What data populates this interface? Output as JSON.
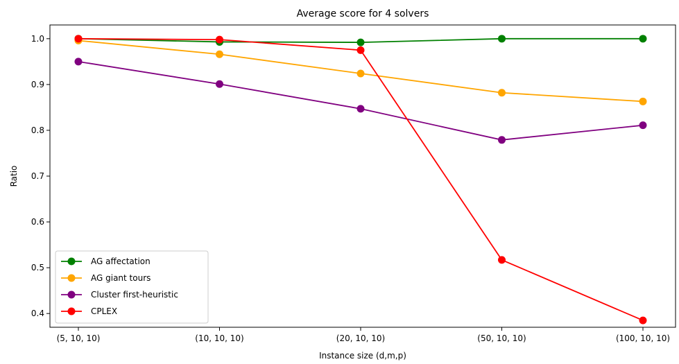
{
  "chart_data": {
    "type": "line",
    "title": "Average score for 4 solvers",
    "xlabel": "Instance size (d,m,p)",
    "ylabel": "Ratio",
    "categories": [
      "(5, 10, 10)",
      "(10, 10, 10)",
      "(20, 10, 10)",
      "(50, 10, 10)",
      "(100, 10, 10)"
    ],
    "ylim": [
      0.37,
      1.03
    ],
    "yticks": [
      "0.4",
      "0.5",
      "0.6",
      "0.7",
      "0.8",
      "0.9",
      "1.0"
    ],
    "grid": false,
    "legend_position": "lower-left",
    "series": [
      {
        "name": "AG affectation",
        "color": "#008000",
        "values": [
          1.0,
          0.993,
          0.992,
          1.0,
          1.0
        ]
      },
      {
        "name": "AG giant tours",
        "color": "#FFA500",
        "values": [
          0.996,
          0.966,
          0.924,
          0.882,
          0.863
        ]
      },
      {
        "name": "Cluster first-heuristic",
        "color": "#800080",
        "values": [
          0.95,
          0.901,
          0.847,
          0.779,
          0.811
        ]
      },
      {
        "name": "CPLEX",
        "color": "#FF0000",
        "values": [
          1.0,
          0.998,
          0.975,
          0.517,
          0.385
        ]
      }
    ]
  }
}
